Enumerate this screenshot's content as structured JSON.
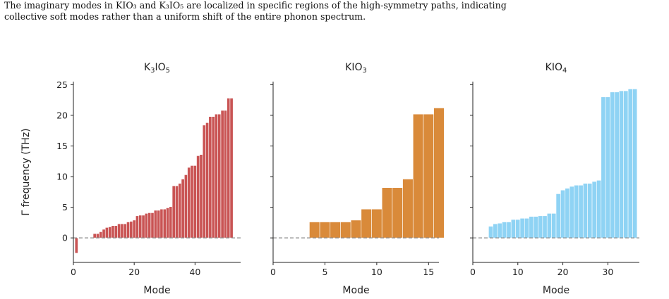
{
  "caption": {
    "line1": "The imaginary modes in KIO₃ and K₃IO₅ are localized in specific regions of the high-symmetry paths, indicating",
    "line2": "collective soft modes rather than a uniform shift of the entire phonon spectrum."
  },
  "chart_data": [
    {
      "type": "bar",
      "title": "K₃IO₅",
      "title_base": "K",
      "title_sub1": "3",
      "title_mid": "IO",
      "title_sub2": "5",
      "xlabel": "Mode",
      "ylabel": "Γ frequency (THz)",
      "color": "#c95454",
      "xlim": [
        0,
        55
      ],
      "ylim": [
        -4,
        25.5
      ],
      "xticks": [
        0,
        20,
        40
      ],
      "yticks": [
        0,
        5,
        10,
        15,
        20,
        25
      ],
      "x_start": 1,
      "values": [
        -2.5,
        0.05,
        0.05,
        0.05,
        0.05,
        0.05,
        0.7,
        0.7,
        1.0,
        1.4,
        1.7,
        1.8,
        2.0,
        2.0,
        2.3,
        2.3,
        2.3,
        2.6,
        2.7,
        2.9,
        3.6,
        3.7,
        3.7,
        4.0,
        4.1,
        4.1,
        4.5,
        4.5,
        4.7,
        4.7,
        4.9,
        5.1,
        8.5,
        8.5,
        8.9,
        9.6,
        10.3,
        11.5,
        11.8,
        11.8,
        13.4,
        13.6,
        18.4,
        18.8,
        19.8,
        19.8,
        20.2,
        20.2,
        20.8,
        20.8,
        22.8,
        22.8
      ]
    },
    {
      "type": "bar",
      "title": "KIO₃",
      "title_base": "KIO",
      "title_sub1": "3",
      "title_mid": "",
      "title_sub2": "",
      "xlabel": "Mode",
      "ylabel": "",
      "color": "#d98a3a",
      "xlim": [
        0,
        16
      ],
      "ylim": [
        -4,
        25.5
      ],
      "xticks": [
        0,
        5,
        10,
        15
      ],
      "yticks": [],
      "x_start": 1,
      "values": [
        0.05,
        0.05,
        0.05,
        2.6,
        2.6,
        2.6,
        2.6,
        2.9,
        4.7,
        4.7,
        8.2,
        8.2,
        9.6,
        20.2,
        20.2,
        21.2
      ]
    },
    {
      "type": "bar",
      "title": "KIO₄",
      "title_base": "KIO",
      "title_sub1": "4",
      "title_mid": "",
      "title_sub2": "",
      "xlabel": "Mode",
      "ylabel": "",
      "color": "#8fd3f4",
      "xlim": [
        0,
        37
      ],
      "ylim": [
        -4,
        25.5
      ],
      "xticks": [
        0,
        10,
        20,
        30
      ],
      "yticks": [],
      "x_start": 1,
      "values": [
        0.05,
        0.05,
        0.05,
        1.9,
        2.3,
        2.4,
        2.6,
        2.6,
        3.0,
        3.0,
        3.2,
        3.2,
        3.5,
        3.5,
        3.6,
        3.6,
        4.0,
        4.0,
        7.2,
        7.8,
        8.1,
        8.4,
        8.6,
        8.6,
        8.9,
        8.9,
        9.2,
        9.4,
        23.0,
        23.0,
        23.8,
        23.8,
        24.0,
        24.0,
        24.3,
        24.3
      ]
    }
  ]
}
